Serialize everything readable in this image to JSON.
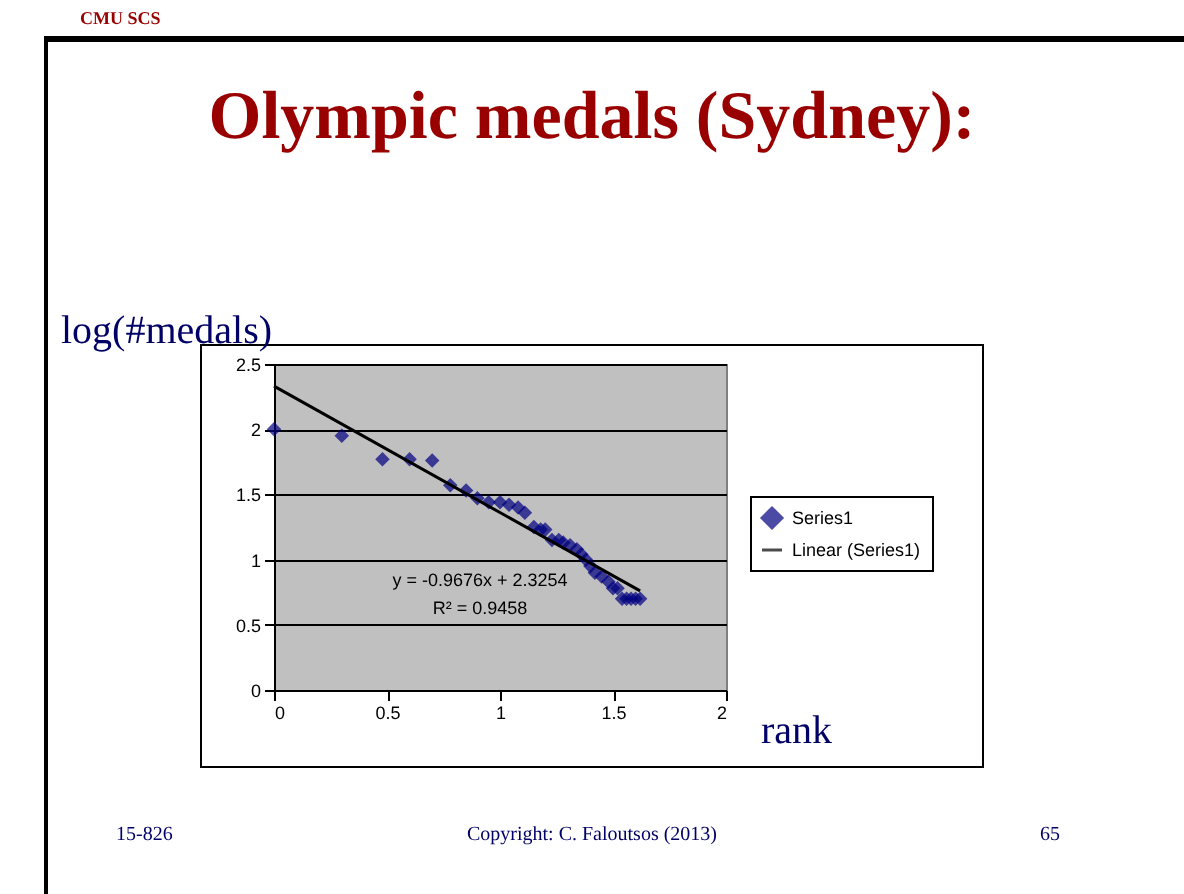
{
  "chart_data": {
    "type": "scatter",
    "title": "Olympic medals (Sydney):",
    "xlabel": "rank",
    "ylabel": "log(#medals)",
    "xlim": [
      0,
      2
    ],
    "xticks": [
      0,
      0.5,
      1,
      1.5,
      2
    ],
    "ylim": [
      0,
      2.5
    ],
    "yticks": [
      0,
      0.5,
      1,
      1.5,
      2,
      2.5
    ],
    "grid": "y",
    "legend": "right",
    "line_style": "solid",
    "series": [
      {
        "name": "Series1",
        "marker": "diamond",
        "color": "#000080",
        "x": [
          0,
          0.3,
          0.48,
          0.6,
          0.7,
          0.78,
          0.85,
          0.9,
          0.95,
          1.0,
          1.04,
          1.08,
          1.11,
          1.15,
          1.18,
          1.2,
          1.23,
          1.26,
          1.28,
          1.31,
          1.34,
          1.36,
          1.38,
          1.4,
          1.42,
          1.45,
          1.48,
          1.5,
          1.52,
          1.54,
          1.56,
          1.58,
          1.6,
          1.62
        ],
        "values": [
          2.0,
          1.95,
          1.77,
          1.77,
          1.76,
          1.57,
          1.53,
          1.47,
          1.44,
          1.44,
          1.42,
          1.4,
          1.36,
          1.25,
          1.23,
          1.23,
          1.15,
          1.15,
          1.13,
          1.11,
          1.08,
          1.04,
          1.0,
          0.95,
          0.9,
          0.87,
          0.83,
          0.78,
          0.78,
          0.7,
          0.7,
          0.7,
          0.7,
          0.7
        ]
      },
      {
        "name": "Linear (Series1)",
        "type": "line",
        "color": "#000000",
        "x": [
          0,
          1.62
        ],
        "values": [
          2.33,
          0.76
        ]
      }
    ],
    "annotations": [
      "CMU SCS",
      "15-826",
      "Copyright: C. Faloutsos (2013)",
      "65",
      "y = -0.9676x + 2.3254",
      "R² = 0.9458"
    ]
  }
}
